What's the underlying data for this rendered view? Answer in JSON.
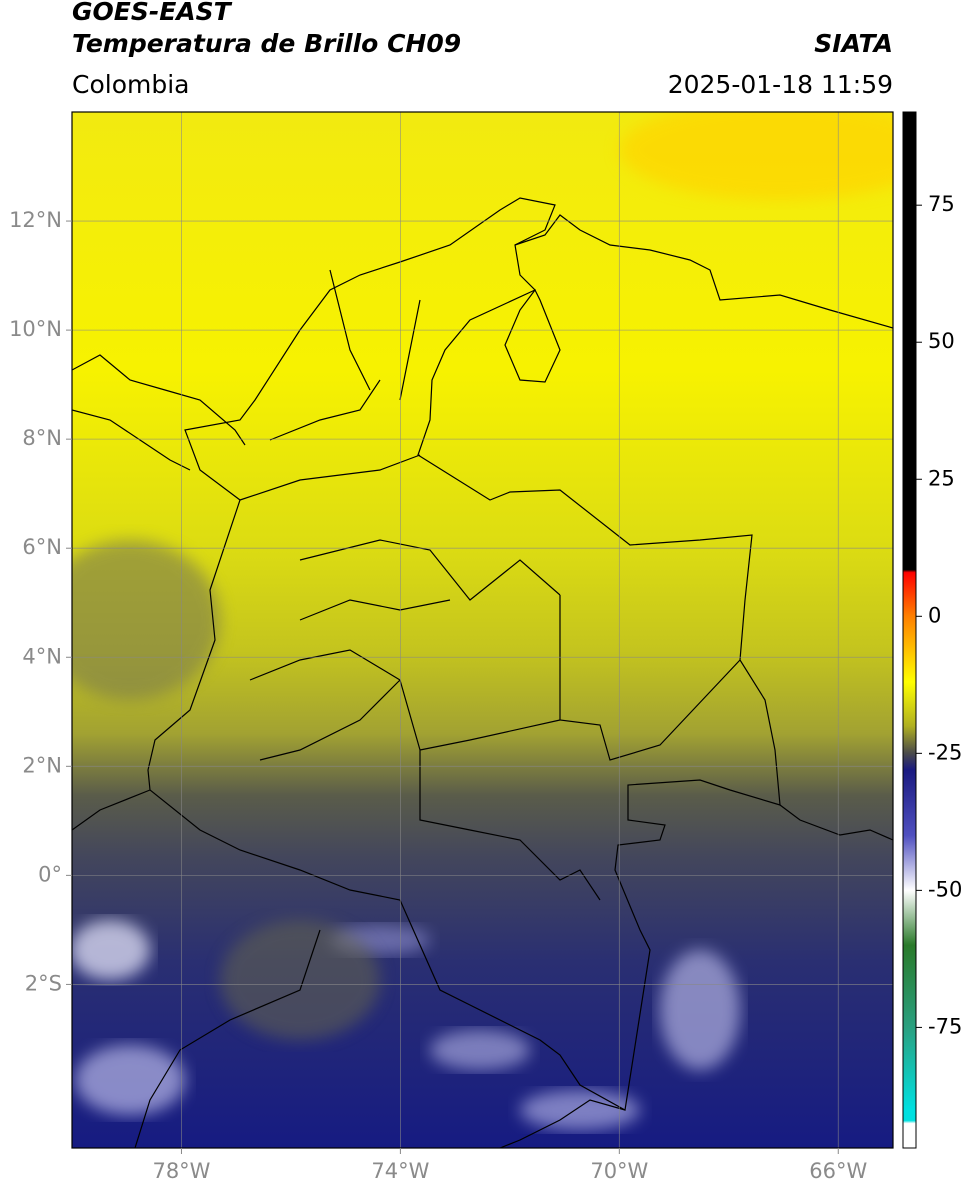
{
  "header": {
    "title": "GOES-EAST",
    "subtitle": "Temperatura de Brillo CH09",
    "source": "SIATA",
    "region": "Colombia",
    "datetime": "2025-01-18 11:59"
  },
  "map": {
    "xlim": [
      -80,
      -65
    ],
    "ylim": [
      -5,
      14
    ],
    "xticks": [
      {
        "value": -78,
        "label": "78°W"
      },
      {
        "value": -74,
        "label": "74°W"
      },
      {
        "value": -70,
        "label": "70°W"
      },
      {
        "value": -66,
        "label": "66°W"
      }
    ],
    "yticks": [
      {
        "value": 12,
        "label": "12°N"
      },
      {
        "value": 10,
        "label": "10°N"
      },
      {
        "value": 8,
        "label": "8°N"
      },
      {
        "value": 6,
        "label": "6°N"
      },
      {
        "value": 4,
        "label": "4°N"
      },
      {
        "value": 2,
        "label": "2°N"
      },
      {
        "value": 0,
        "label": "0°"
      },
      {
        "value": -2,
        "label": "2°S"
      }
    ],
    "grid": true
  },
  "colorbar": {
    "lim": [
      -97,
      92
    ],
    "ticks": [
      75,
      50,
      25,
      0,
      -25,
      -50,
      -75
    ],
    "colorscale": [
      [
        92,
        "#000000"
      ],
      [
        8.5,
        "#000000"
      ],
      [
        8,
        "#ff0000"
      ],
      [
        0,
        "#ff8000"
      ],
      [
        -12,
        "#ffff00"
      ],
      [
        -20,
        "#b0b020"
      ],
      [
        -25,
        "#4a4a4a"
      ],
      [
        -28,
        "#1a1a80"
      ],
      [
        -40,
        "#5050c0"
      ],
      [
        -50,
        "#ffffff"
      ],
      [
        -60,
        "#2a7a2a"
      ],
      [
        -75,
        "#2aa080"
      ],
      [
        -90,
        "#00e0e0"
      ],
      [
        -92,
        "#00e0e0"
      ],
      [
        -92.5,
        "#ffffff"
      ],
      [
        -97,
        "#ffffff"
      ]
    ]
  }
}
